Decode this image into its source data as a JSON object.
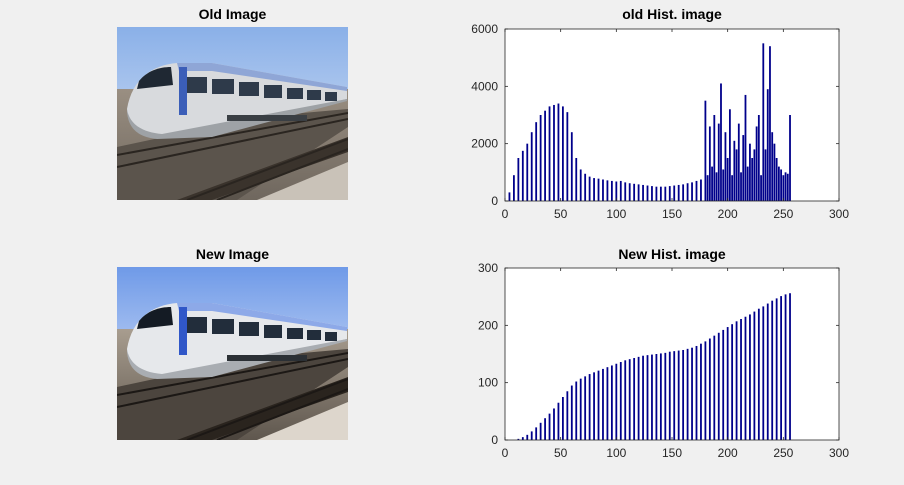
{
  "images": [
    {
      "title": "Old Image"
    },
    {
      "title": "New Image"
    }
  ],
  "chart_data": [
    {
      "type": "bar",
      "title": "old Hist.  image",
      "xlabel": "",
      "ylabel": "",
      "xlim": [
        0,
        300
      ],
      "ylim": [
        0,
        6000
      ],
      "xticks": [
        0,
        50,
        100,
        150,
        200,
        250,
        300
      ],
      "yticks": [
        0,
        2000,
        4000,
        6000
      ],
      "grid": false,
      "color": "#00008b",
      "x": [
        0,
        4,
        8,
        12,
        16,
        20,
        24,
        28,
        32,
        36,
        40,
        44,
        48,
        52,
        56,
        60,
        64,
        68,
        72,
        76,
        80,
        84,
        88,
        92,
        96,
        100,
        104,
        108,
        112,
        116,
        120,
        124,
        128,
        132,
        136,
        140,
        144,
        148,
        152,
        156,
        160,
        164,
        168,
        172,
        176,
        180,
        182,
        184,
        186,
        188,
        190,
        192,
        194,
        196,
        198,
        200,
        202,
        204,
        206,
        208,
        210,
        212,
        214,
        216,
        218,
        220,
        222,
        224,
        226,
        228,
        230,
        232,
        234,
        236,
        238,
        240,
        242,
        244,
        246,
        248,
        250,
        252,
        254,
        256
      ],
      "values": [
        0,
        300,
        900,
        1500,
        1750,
        2000,
        2400,
        2750,
        3000,
        3150,
        3300,
        3350,
        3400,
        3300,
        3100,
        2400,
        1500,
        1100,
        950,
        850,
        800,
        780,
        750,
        720,
        700,
        680,
        700,
        650,
        620,
        600,
        580,
        560,
        540,
        520,
        500,
        500,
        500,
        520,
        540,
        560,
        580,
        620,
        650,
        700,
        750,
        3500,
        900,
        2600,
        1200,
        3000,
        1000,
        2700,
        4100,
        1100,
        2400,
        1500,
        3200,
        900,
        2100,
        1800,
        2700,
        1000,
        2300,
        3700,
        1200,
        2000,
        1500,
        1800,
        2600,
        3000,
        900,
        5500,
        1800,
        3900,
        5400,
        2400,
        2000,
        1500,
        1200,
        1100,
        900,
        1000,
        950,
        3000
      ]
    },
    {
      "type": "bar",
      "title": "New Hist.  image",
      "xlabel": "",
      "ylabel": "",
      "xlim": [
        0,
        300
      ],
      "ylim": [
        0,
        300
      ],
      "xticks": [
        0,
        50,
        100,
        150,
        200,
        250,
        300
      ],
      "yticks": [
        0,
        100,
        200,
        300
      ],
      "grid": false,
      "color": "#00008b",
      "x": [
        0,
        4,
        8,
        12,
        16,
        20,
        24,
        28,
        32,
        36,
        40,
        44,
        48,
        52,
        56,
        60,
        64,
        68,
        72,
        76,
        80,
        84,
        88,
        92,
        96,
        100,
        104,
        108,
        112,
        116,
        120,
        124,
        128,
        132,
        136,
        140,
        144,
        148,
        152,
        156,
        160,
        164,
        168,
        172,
        176,
        180,
        184,
        188,
        192,
        196,
        200,
        204,
        208,
        212,
        216,
        220,
        224,
        228,
        232,
        236,
        240,
        244,
        248,
        252,
        256
      ],
      "values": [
        0,
        0,
        0,
        2,
        5,
        9,
        15,
        22,
        30,
        38,
        46,
        55,
        65,
        75,
        85,
        95,
        102,
        107,
        111,
        115,
        118,
        121,
        124,
        127,
        130,
        133,
        136,
        139,
        141,
        143,
        145,
        147,
        148,
        149,
        150,
        151,
        152,
        154,
        155,
        156,
        157,
        159,
        161,
        164,
        168,
        172,
        177,
        182,
        187,
        192,
        197,
        202,
        207,
        211,
        215,
        219,
        224,
        229,
        233,
        238,
        243,
        247,
        251,
        254,
        256
      ]
    }
  ]
}
